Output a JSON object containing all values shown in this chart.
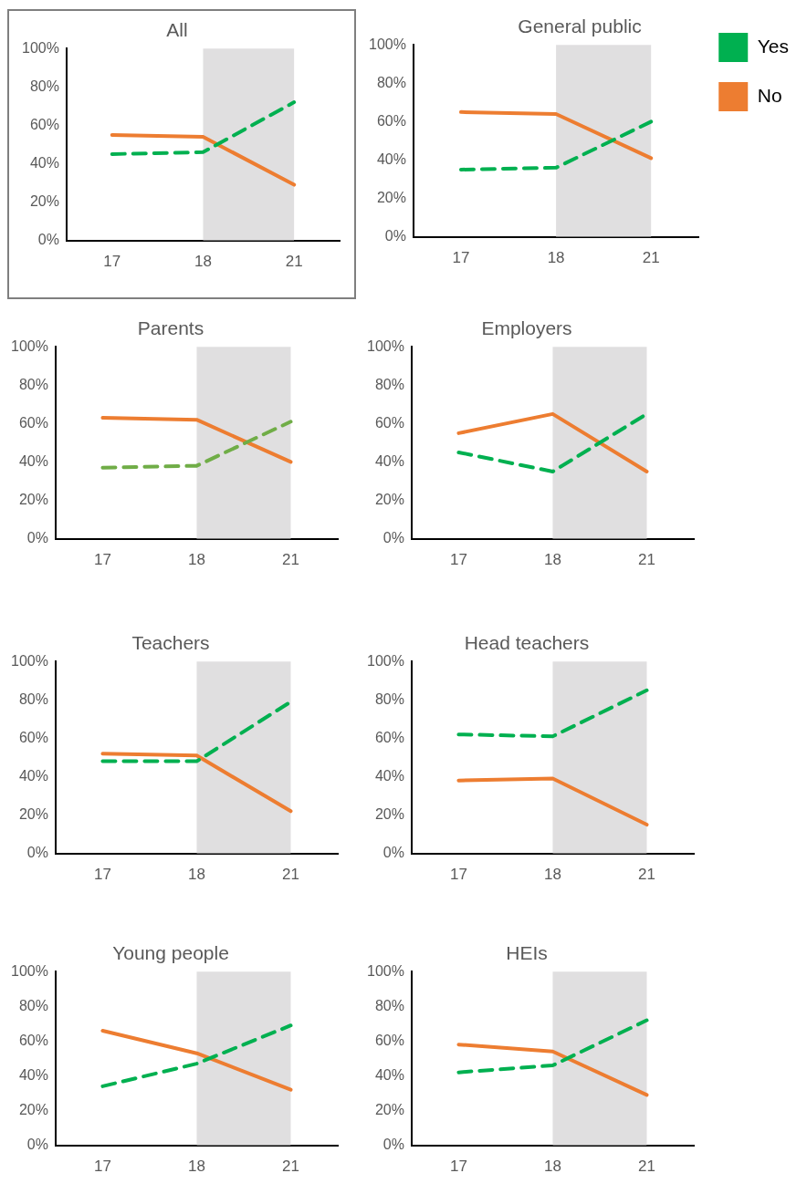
{
  "chart_data": [
    {
      "type": "line",
      "title": "All",
      "categories": [
        "17",
        "18",
        "21"
      ],
      "ylim": [
        0,
        100
      ],
      "yticks": [
        {
          "value": 0,
          "label": "0%"
        },
        {
          "value": 20,
          "label": "20%"
        },
        {
          "value": 40,
          "label": "40%"
        },
        {
          "value": 60,
          "label": "60%"
        },
        {
          "value": 80,
          "label": "80%"
        },
        {
          "value": 100,
          "label": "100%"
        }
      ],
      "grid": false,
      "legend": false,
      "bands": [
        {
          "axis": "x",
          "from": "18",
          "to": "21",
          "color": "#e0dfe0"
        }
      ],
      "series": [
        {
          "color": "#00b050",
          "line_style": "dashed",
          "values": [
            45,
            46,
            72
          ]
        },
        {
          "color": "#ed7d31",
          "line_style": "solid",
          "values": [
            55,
            54,
            29
          ]
        }
      ]
    },
    {
      "type": "line",
      "title": "General public",
      "categories": [
        "17",
        "18",
        "21"
      ],
      "ylim": [
        0,
        100
      ],
      "yticks": [
        {
          "value": 0,
          "label": "0%"
        },
        {
          "value": 20,
          "label": "20%"
        },
        {
          "value": 40,
          "label": "40%"
        },
        {
          "value": 60,
          "label": "60%"
        },
        {
          "value": 80,
          "label": "80%"
        },
        {
          "value": 100,
          "label": "100%"
        }
      ],
      "grid": false,
      "legend": "right",
      "bands": [
        {
          "axis": "x",
          "from": "18",
          "to": "21",
          "color": "#e0dfe0"
        }
      ],
      "series": [
        {
          "name": "Yes",
          "color": "#00b050",
          "line_style": "dashed",
          "values": [
            35,
            36,
            60
          ]
        },
        {
          "name": "No",
          "color": "#ed7d31",
          "line_style": "solid",
          "values": [
            65,
            64,
            41
          ]
        }
      ]
    },
    {
      "type": "line",
      "title": "Parents",
      "categories": [
        "17",
        "18",
        "21"
      ],
      "ylim": [
        0,
        100
      ],
      "yticks": [
        {
          "value": 0,
          "label": "0%"
        },
        {
          "value": 20,
          "label": "20%"
        },
        {
          "value": 40,
          "label": "40%"
        },
        {
          "value": 60,
          "label": "60%"
        },
        {
          "value": 80,
          "label": "80%"
        },
        {
          "value": 100,
          "label": "100%"
        }
      ],
      "grid": false,
      "legend": false,
      "bands": [
        {
          "axis": "x",
          "from": "18",
          "to": "21",
          "color": "#e0dfe0"
        }
      ],
      "series": [
        {
          "color": "#70ad47",
          "line_style": "dashed",
          "values": [
            37,
            38,
            61
          ]
        },
        {
          "color": "#ed7d31",
          "line_style": "solid",
          "values": [
            63,
            62,
            40
          ]
        }
      ]
    },
    {
      "type": "line",
      "title": "Employers",
      "categories": [
        "17",
        "18",
        "21"
      ],
      "ylim": [
        0,
        100
      ],
      "yticks": [
        {
          "value": 0,
          "label": "0%"
        },
        {
          "value": 20,
          "label": "20%"
        },
        {
          "value": 40,
          "label": "40%"
        },
        {
          "value": 60,
          "label": "60%"
        },
        {
          "value": 80,
          "label": "80%"
        },
        {
          "value": 100,
          "label": "100%"
        }
      ],
      "grid": false,
      "legend": false,
      "bands": [
        {
          "axis": "x",
          "from": "18",
          "to": "21",
          "color": "#e0dfe0"
        }
      ],
      "series": [
        {
          "color": "#00b050",
          "line_style": "dashed",
          "values": [
            45,
            35,
            65
          ]
        },
        {
          "color": "#ed7d31",
          "line_style": "solid",
          "values": [
            55,
            65,
            35
          ]
        }
      ]
    },
    {
      "type": "line",
      "title": "Teachers",
      "categories": [
        "17",
        "18",
        "21"
      ],
      "ylim": [
        0,
        100
      ],
      "yticks": [
        {
          "value": 0,
          "label": "0%"
        },
        {
          "value": 20,
          "label": "20%"
        },
        {
          "value": 40,
          "label": "40%"
        },
        {
          "value": 60,
          "label": "60%"
        },
        {
          "value": 80,
          "label": "80%"
        },
        {
          "value": 100,
          "label": "100%"
        }
      ],
      "grid": false,
      "legend": false,
      "bands": [
        {
          "axis": "x",
          "from": "18",
          "to": "21",
          "color": "#e0dfe0"
        }
      ],
      "series": [
        {
          "color": "#00b050",
          "line_style": "dashed",
          "values": [
            48,
            48,
            79
          ]
        },
        {
          "color": "#ed7d31",
          "line_style": "solid",
          "values": [
            52,
            51,
            22
          ]
        }
      ]
    },
    {
      "type": "line",
      "title": "Head teachers",
      "categories": [
        "17",
        "18",
        "21"
      ],
      "ylim": [
        0,
        100
      ],
      "yticks": [
        {
          "value": 0,
          "label": "0%"
        },
        {
          "value": 20,
          "label": "20%"
        },
        {
          "value": 40,
          "label": "40%"
        },
        {
          "value": 60,
          "label": "60%"
        },
        {
          "value": 80,
          "label": "80%"
        },
        {
          "value": 100,
          "label": "100%"
        }
      ],
      "grid": false,
      "legend": false,
      "bands": [
        {
          "axis": "x",
          "from": "18",
          "to": "21",
          "color": "#e0dfe0"
        }
      ],
      "series": [
        {
          "color": "#00b050",
          "line_style": "dashed",
          "values": [
            62,
            61,
            85
          ]
        },
        {
          "color": "#ed7d31",
          "line_style": "solid",
          "values": [
            38,
            39,
            15
          ]
        }
      ]
    },
    {
      "type": "line",
      "title": "Young people",
      "categories": [
        "17",
        "18",
        "21"
      ],
      "ylim": [
        0,
        100
      ],
      "yticks": [
        {
          "value": 0,
          "label": "0%"
        },
        {
          "value": 20,
          "label": "20%"
        },
        {
          "value": 40,
          "label": "40%"
        },
        {
          "value": 60,
          "label": "60%"
        },
        {
          "value": 80,
          "label": "80%"
        },
        {
          "value": 100,
          "label": "100%"
        }
      ],
      "grid": false,
      "legend": false,
      "bands": [
        {
          "axis": "x",
          "from": "18",
          "to": "21",
          "color": "#e0dfe0"
        }
      ],
      "series": [
        {
          "color": "#00b050",
          "line_style": "dashed",
          "values": [
            34,
            47,
            69
          ]
        },
        {
          "color": "#ed7d31",
          "line_style": "solid",
          "values": [
            66,
            53,
            32
          ]
        }
      ]
    },
    {
      "type": "line",
      "title": "HEIs",
      "categories": [
        "17",
        "18",
        "21"
      ],
      "ylim": [
        0,
        100
      ],
      "yticks": [
        {
          "value": 0,
          "label": "0%"
        },
        {
          "value": 20,
          "label": "20%"
        },
        {
          "value": 40,
          "label": "40%"
        },
        {
          "value": 60,
          "label": "60%"
        },
        {
          "value": 80,
          "label": "80%"
        },
        {
          "value": 100,
          "label": "100%"
        }
      ],
      "grid": false,
      "legend": false,
      "bands": [
        {
          "axis": "x",
          "from": "18",
          "to": "21",
          "color": "#e0dfe0"
        }
      ],
      "series": [
        {
          "color": "#00b050",
          "line_style": "dashed",
          "values": [
            42,
            46,
            72
          ]
        },
        {
          "color": "#ed7d31",
          "line_style": "solid",
          "values": [
            58,
            54,
            29
          ]
        }
      ]
    }
  ]
}
